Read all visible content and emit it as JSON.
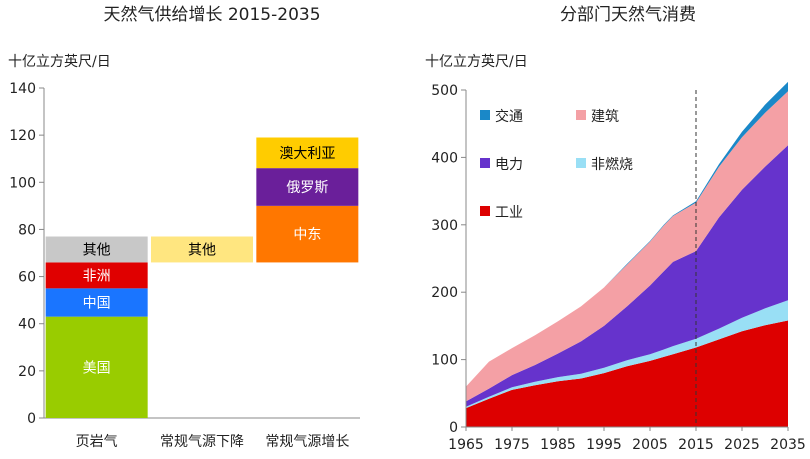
{
  "chart_data": [
    {
      "type": "bar",
      "stacked": true,
      "title": "天然气供给增长 2015-2035",
      "ylabel": "十亿立方英尺/日",
      "ylim": [
        0,
        140
      ],
      "yticks": [
        0,
        20,
        40,
        60,
        80,
        100,
        120,
        140
      ],
      "categories": [
        "页岩气",
        "常规气源下降",
        "常规气源增长"
      ],
      "segments": [
        {
          "category": "页岩气",
          "label": "美国",
          "from": 0,
          "to": 43,
          "color": "#99cc00",
          "text_color": "#ffffff"
        },
        {
          "category": "页岩气",
          "label": "中国",
          "from": 43,
          "to": 55,
          "color": "#1a75ff",
          "text_color": "#ffffff"
        },
        {
          "category": "页岩气",
          "label": "非洲",
          "from": 55,
          "to": 66,
          "color": "#e00000",
          "text_color": "#ffffff"
        },
        {
          "category": "页岩气",
          "label": "其他",
          "from": 66,
          "to": 77,
          "color": "#c8c8c8",
          "text_color": "#000000"
        },
        {
          "category": "常规气源下降",
          "label": "其他",
          "from": 66,
          "to": 77,
          "color": "#ffe680",
          "text_color": "#000000"
        },
        {
          "category": "常规气源增长",
          "label": "中东",
          "from": 66,
          "to": 90,
          "color": "#ff7700",
          "text_color": "#ffffff"
        },
        {
          "category": "常规气源增长",
          "label": "俄罗斯",
          "from": 90,
          "to": 106,
          "color": "#6a1f9a",
          "text_color": "#ffffff"
        },
        {
          "category": "常规气源增长",
          "label": "澳大利亚",
          "from": 106,
          "to": 119,
          "color": "#ffcc00",
          "text_color": "#000000"
        }
      ]
    },
    {
      "type": "area",
      "stacked": true,
      "title": "分部门天然气消费",
      "ylabel": "十亿立方英尺/日",
      "ylim": [
        0,
        500
      ],
      "yticks": [
        0,
        100,
        200,
        300,
        400,
        500
      ],
      "xlim": [
        1965,
        2035
      ],
      "xticks": [
        1965,
        1975,
        1985,
        1995,
        2005,
        2015,
        2025,
        2035
      ],
      "reference_x": 2015,
      "x": [
        1965,
        1970,
        1975,
        1980,
        1985,
        1990,
        1995,
        2000,
        2005,
        2008,
        2010,
        2015,
        2020,
        2025,
        2030,
        2035
      ],
      "series": [
        {
          "name": "工业",
          "color": "#dd0000",
          "values": [
            28,
            42,
            55,
            62,
            68,
            72,
            80,
            90,
            98,
            104,
            108,
            118,
            130,
            142,
            151,
            158
          ]
        },
        {
          "name": "非燃烧",
          "color": "#99dff5",
          "values": [
            2,
            3,
            4,
            5,
            6,
            7,
            8,
            9,
            10,
            11,
            12,
            13,
            16,
            20,
            25,
            30
          ]
        },
        {
          "name": "电力",
          "color": "#6633cc",
          "values": [
            8,
            12,
            18,
            25,
            35,
            48,
            62,
            80,
            102,
            116,
            125,
            130,
            165,
            190,
            210,
            230
          ]
        },
        {
          "name": "建筑",
          "color": "#f4a0a5",
          "values": [
            22,
            40,
            40,
            44,
            48,
            52,
            57,
            62,
            65,
            68,
            68,
            72,
            75,
            78,
            80,
            80
          ]
        },
        {
          "name": "交通",
          "color": "#1a88c8",
          "values": [
            0,
            0,
            0,
            0,
            0,
            0,
            0,
            1,
            1,
            1,
            1,
            2,
            4,
            8,
            12,
            14
          ]
        }
      ],
      "legend": [
        {
          "name": "交通",
          "color": "#1a88c8"
        },
        {
          "name": "建筑",
          "color": "#f4a0a5"
        },
        {
          "name": "电力",
          "color": "#6633cc"
        },
        {
          "name": "非燃烧",
          "color": "#99dff5"
        },
        {
          "name": "工业",
          "color": "#dd0000"
        }
      ]
    }
  ]
}
